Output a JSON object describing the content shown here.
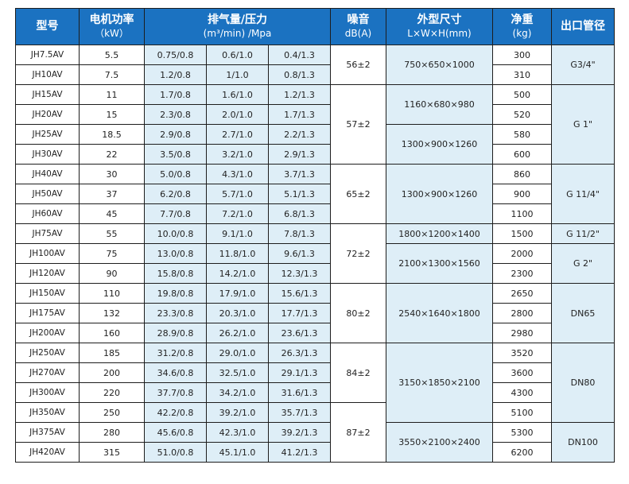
{
  "header": {
    "model": "型号",
    "power": "电机功率",
    "power_unit": "（kW）",
    "flow": "排气量/压力",
    "flow_unit": "(m³/min) /Mpa",
    "noise": "噪音",
    "noise_unit": "dB(A)",
    "dims": "外型尺寸",
    "dims_unit": "L×W×H(mm)",
    "weight": "净重",
    "weight_unit": "(kg)",
    "outlet": "出口管径"
  },
  "rows": [
    {
      "model": "JH7.5AV",
      "power": "5.5",
      "f1": "0.75/0.8",
      "f2": "0.6/1.0",
      "f3": "0.4/1.3",
      "weight": "300"
    },
    {
      "model": "JH10AV",
      "power": "7.5",
      "f1": "1.2/0.8",
      "f2": "1/1.0",
      "f3": "0.8/1.3",
      "weight": "310"
    },
    {
      "model": "JH15AV",
      "power": "11",
      "f1": "1.7/0.8",
      "f2": "1.6/1.0",
      "f3": "1.2/1.3",
      "weight": "500"
    },
    {
      "model": "JH20AV",
      "power": "15",
      "f1": "2.3/0.8",
      "f2": "2.0/1.0",
      "f3": "1.7/1.3",
      "weight": "520"
    },
    {
      "model": "JH25AV",
      "power": "18.5",
      "f1": "2.9/0.8",
      "f2": "2.7/1.0",
      "f3": "2.2/1.3",
      "weight": "580"
    },
    {
      "model": "JH30AV",
      "power": "22",
      "f1": "3.5/0.8",
      "f2": "3.2/1.0",
      "f3": "2.9/1.3",
      "weight": "600"
    },
    {
      "model": "JH40AV",
      "power": "30",
      "f1": "5.0/0.8",
      "f2": "4.3/1.0",
      "f3": "3.7/1.3",
      "weight": "860"
    },
    {
      "model": "JH50AV",
      "power": "37",
      "f1": "6.2/0.8",
      "f2": "5.7/1.0",
      "f3": "5.1/1.3",
      "weight": "900"
    },
    {
      "model": "JH60AV",
      "power": "45",
      "f1": "7.7/0.8",
      "f2": "7.2/1.0",
      "f3": "6.8/1.3",
      "weight": "1100"
    },
    {
      "model": "JH75AV",
      "power": "55",
      "f1": "10.0/0.8",
      "f2": "9.1/1.0",
      "f3": "7.8/1.3",
      "weight": "1500"
    },
    {
      "model": "JH100AV",
      "power": "75",
      "f1": "13.0/0.8",
      "f2": "11.8/1.0",
      "f3": "9.6/1.3",
      "weight": "2000"
    },
    {
      "model": "JH120AV",
      "power": "90",
      "f1": "15.8/0.8",
      "f2": "14.2/1.0",
      "f3": "12.3/1.3",
      "weight": "2300"
    },
    {
      "model": "JH150AV",
      "power": "110",
      "f1": "19.8/0.8",
      "f2": "17.9/1.0",
      "f3": "15.6/1.3",
      "weight": "2650"
    },
    {
      "model": "JH175AV",
      "power": "132",
      "f1": "23.3/0.8",
      "f2": "20.3/1.0",
      "f3": "17.7/1.3",
      "weight": "2800"
    },
    {
      "model": "JH200AV",
      "power": "160",
      "f1": "28.9/0.8",
      "f2": "26.2/1.0",
      "f3": "23.6/1.3",
      "weight": "2980"
    },
    {
      "model": "JH250AV",
      "power": "185",
      "f1": "31.2/0.8",
      "f2": "29.0/1.0",
      "f3": "26.3/1.3",
      "weight": "3520"
    },
    {
      "model": "JH270AV",
      "power": "200",
      "f1": "34.6/0.8",
      "f2": "32.5/1.0",
      "f3": "29.1/1.3",
      "weight": "3600"
    },
    {
      "model": "JH300AV",
      "power": "220",
      "f1": "37.7/0.8",
      "f2": "34.2/1.0",
      "f3": "31.6/1.3",
      "weight": "4300"
    },
    {
      "model": "JH350AV",
      "power": "250",
      "f1": "42.2/0.8",
      "f2": "39.2/1.0",
      "f3": "35.7/1.3",
      "weight": "5100"
    },
    {
      "model": "JH375AV",
      "power": "280",
      "f1": "45.6/0.8",
      "f2": "42.3/1.0",
      "f3": "39.2/1.3",
      "weight": "5300"
    },
    {
      "model": "JH420AV",
      "power": "315",
      "f1": "51.0/0.8",
      "f2": "45.1/1.0",
      "f3": "41.2/1.3",
      "weight": "6200"
    }
  ],
  "noise": [
    {
      "value": "56±2",
      "start": 0,
      "span": 2
    },
    {
      "value": "57±2",
      "start": 2,
      "span": 4
    },
    {
      "value": "65±2",
      "start": 6,
      "span": 3
    },
    {
      "value": "72±2",
      "start": 9,
      "span": 3
    },
    {
      "value": "80±2",
      "start": 12,
      "span": 3
    },
    {
      "value": "84±2",
      "start": 15,
      "span": 3
    },
    {
      "value": "87±2",
      "start": 18,
      "span": 3
    }
  ],
  "dims": [
    {
      "value": "750×650×1000",
      "start": 0,
      "span": 2
    },
    {
      "value": "1160×680×980",
      "start": 2,
      "span": 2
    },
    {
      "value": "1300×900×1260",
      "start": 4,
      "span": 2
    },
    {
      "value": "1300×900×1260",
      "start": 6,
      "span": 3
    },
    {
      "value": "1800×1200×1400",
      "start": 9,
      "span": 1
    },
    {
      "value": "2100×1300×1560",
      "start": 10,
      "span": 2
    },
    {
      "value": "2540×1640×1800",
      "start": 12,
      "span": 3
    },
    {
      "value": "3150×1850×2100",
      "start": 15,
      "span": 4
    },
    {
      "value": "3550×2100×2400",
      "start": 19,
      "span": 2
    }
  ],
  "outlet": [
    {
      "value": "G3/4\"",
      "start": 0,
      "span": 2
    },
    {
      "value": "G 1\"",
      "start": 2,
      "span": 4
    },
    {
      "value": "G 11/4\"",
      "start": 6,
      "span": 3
    },
    {
      "value": "G 11/2\"",
      "start": 9,
      "span": 1
    },
    {
      "value": "G 2\"",
      "start": 10,
      "span": 2
    },
    {
      "value": "DN65",
      "start": 12,
      "span": 3
    },
    {
      "value": "DN80",
      "start": 15,
      "span": 4
    },
    {
      "value": "DN100",
      "start": 19,
      "span": 2
    }
  ],
  "colors": {
    "header_bg": "#1b72c1",
    "header_text": "#ffffff",
    "cell_blue": "#deeef7",
    "cell_white": "#ffffff",
    "border": "#1d1d1d"
  }
}
